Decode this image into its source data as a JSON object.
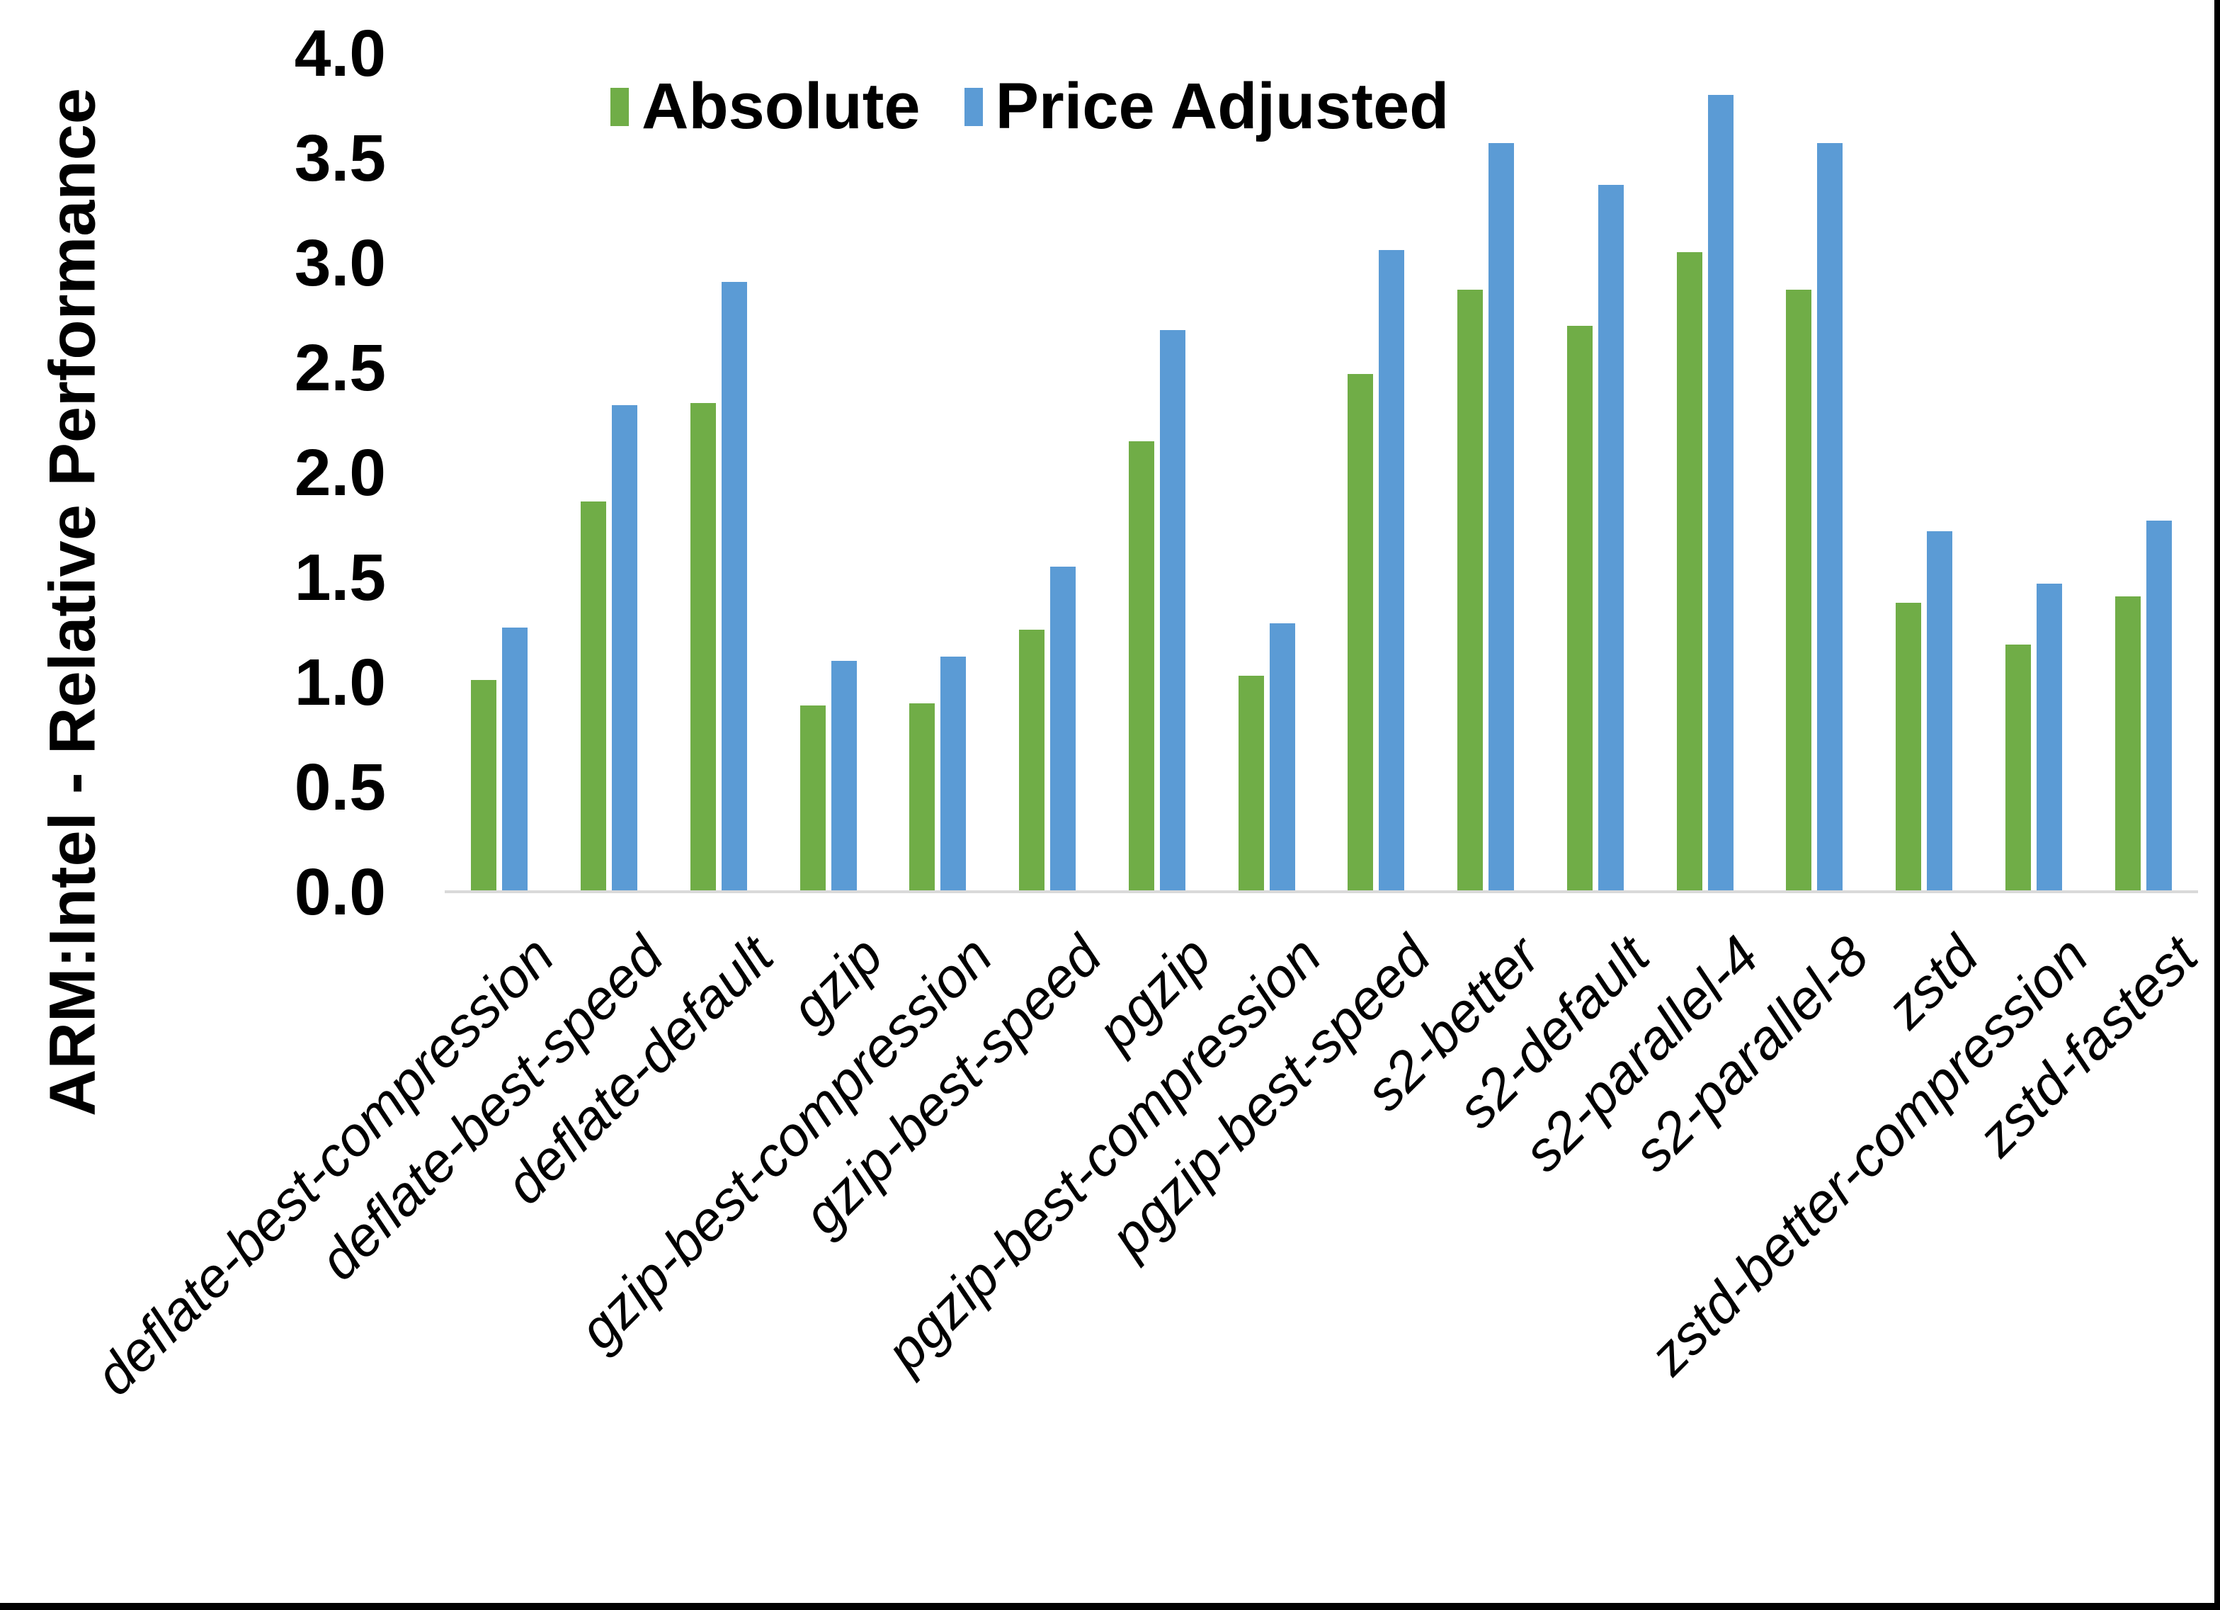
{
  "chart_data": {
    "type": "bar",
    "title": "",
    "ylabel": "ARM:Intel - Relative Performance",
    "xlabel": "",
    "ylim": [
      0.0,
      4.0
    ],
    "ytick_step": 0.5,
    "ytick_labels": [
      "0.0",
      "0.5",
      "1.0",
      "1.5",
      "2.0",
      "2.5",
      "3.0",
      "3.5",
      "4.0"
    ],
    "grid": false,
    "legend_position": "top-center",
    "categories": [
      "deflate-best-compression",
      "deflate-best-speed",
      "deflate-default",
      "gzip",
      "gzip-best-compression",
      "gzip-best-speed",
      "pgzip",
      "pgzip-best-compression",
      "pgzip-best-speed",
      "s2-better",
      "s2-default",
      "s2-parallel-4",
      "s2-parallel-8",
      "zstd",
      "zstd-better-compression",
      "zstd-fastest"
    ],
    "series": [
      {
        "name": "Absolute",
        "color": "#70AD47",
        "values": [
          1.01,
          1.86,
          2.33,
          0.89,
          0.9,
          1.25,
          2.15,
          1.03,
          2.47,
          2.87,
          2.7,
          3.05,
          2.87,
          1.38,
          1.18,
          1.41
        ]
      },
      {
        "name": "Price Adjusted",
        "color": "#5B9BD5",
        "values": [
          1.26,
          2.32,
          2.91,
          1.1,
          1.12,
          1.55,
          2.68,
          1.28,
          3.06,
          3.57,
          3.37,
          3.8,
          3.57,
          1.72,
          1.47,
          1.77
        ]
      }
    ]
  },
  "colors": {
    "axis_line": "#D9D9D9",
    "background": "#FFFFFF",
    "border_strip": "#000000",
    "text": "#000000"
  }
}
